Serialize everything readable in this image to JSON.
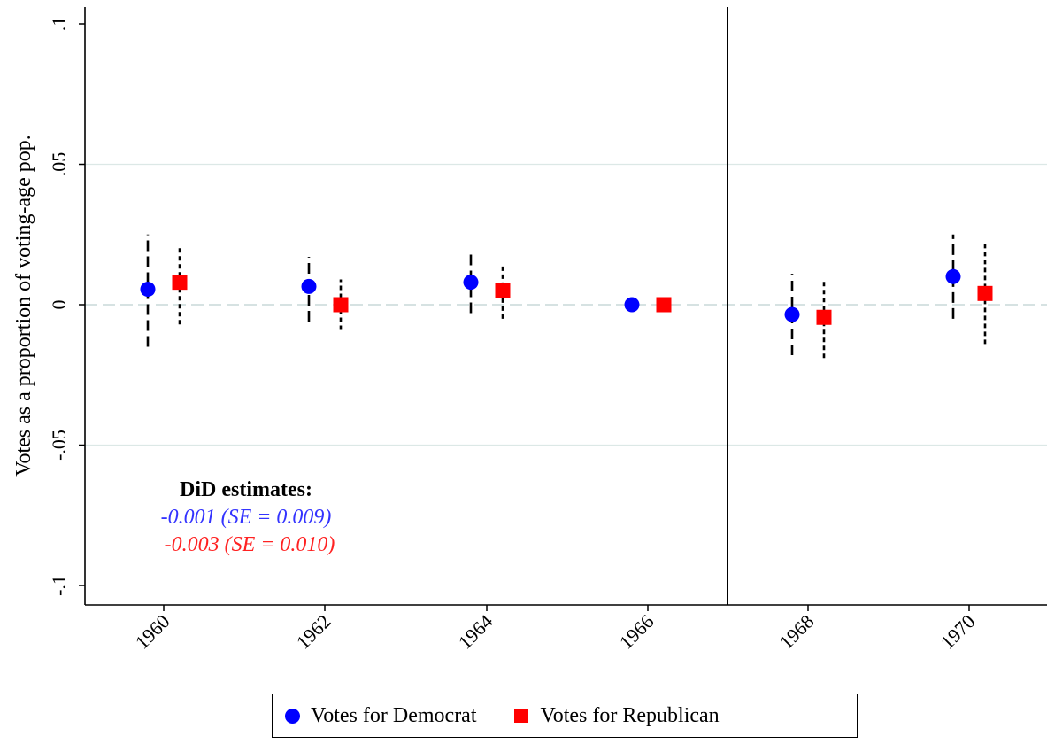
{
  "chart_data": {
    "type": "scatter",
    "title": "",
    "xlabel": "",
    "ylabel": "Votes as a proportion of voting-age pop.",
    "ylim": [
      -0.1,
      0.1
    ],
    "yticks": [
      {
        "value": -0.1,
        "label": "-.1"
      },
      {
        "value": -0.05,
        "label": "-.05"
      },
      {
        "value": 0,
        "label": "0"
      },
      {
        "value": 0.05,
        "label": ".05"
      },
      {
        "value": 0.1,
        "label": ".1"
      }
    ],
    "categories": [
      "1960",
      "1962",
      "1964",
      "1966",
      "1968",
      "1970"
    ],
    "vertical_line_between": [
      "1966",
      "1968"
    ],
    "grid": true,
    "legend_position": "bottom",
    "series": [
      {
        "name": "Votes for Democrat",
        "color": "#0000ff",
        "marker": "circle",
        "ci_style": "dashed",
        "points": [
          {
            "x": "1960",
            "y": 0.0055,
            "ci": [
              -0.015,
              0.025
            ]
          },
          {
            "x": "1962",
            "y": 0.0065,
            "ci": [
              -0.006,
              0.017
            ]
          },
          {
            "x": "1964",
            "y": 0.008,
            "ci": [
              -0.003,
              0.019
            ]
          },
          {
            "x": "1966",
            "y": 0.0,
            "ci": [
              0.0,
              0.0
            ]
          },
          {
            "x": "1968",
            "y": -0.0035,
            "ci": [
              -0.018,
              0.011
            ]
          },
          {
            "x": "1970",
            "y": 0.01,
            "ci": [
              -0.005,
              0.025
            ]
          }
        ]
      },
      {
        "name": "Votes for Republican",
        "color": "#ff0000",
        "marker": "square",
        "ci_style": "dotted",
        "points": [
          {
            "x": "1960",
            "y": 0.008,
            "ci": [
              -0.007,
              0.021
            ]
          },
          {
            "x": "1962",
            "y": 0.0,
            "ci": [
              -0.009,
              0.009
            ]
          },
          {
            "x": "1964",
            "y": 0.005,
            "ci": [
              -0.005,
              0.014
            ]
          },
          {
            "x": "1966",
            "y": 0.0,
            "ci": [
              0.0,
              0.0
            ]
          },
          {
            "x": "1968",
            "y": -0.0045,
            "ci": [
              -0.019,
              0.009
            ]
          },
          {
            "x": "1970",
            "y": 0.004,
            "ci": [
              -0.014,
              0.022
            ]
          }
        ]
      }
    ],
    "annotation": {
      "heading": "DiD estimates:",
      "lines": [
        {
          "text": "-0.001 (SE = 0.009)",
          "color": "#3333ff"
        },
        {
          "text": "-0.003 (SE = 0.010)",
          "color": "#ff2222"
        }
      ]
    }
  }
}
